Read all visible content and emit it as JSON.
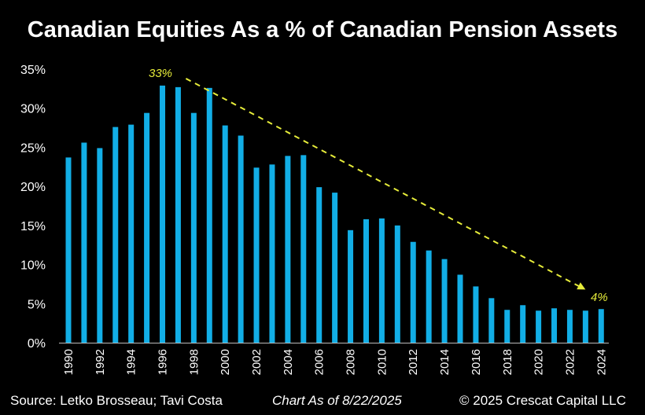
{
  "chart_data": {
    "type": "bar",
    "title": "Canadian Equities As a % of Canadian Pension Assets",
    "categories": [
      "1990",
      "1991",
      "1992",
      "1993",
      "1994",
      "1995",
      "1996",
      "1997",
      "1998",
      "1999",
      "2000",
      "2001",
      "2002",
      "2003",
      "2004",
      "2005",
      "2006",
      "2007",
      "2008",
      "2009",
      "2010",
      "2011",
      "2012",
      "2013",
      "2014",
      "2015",
      "2016",
      "2017",
      "2018",
      "2019",
      "2020",
      "2021",
      "2022",
      "2023",
      "2024"
    ],
    "values": [
      23.7,
      25.6,
      24.9,
      27.6,
      27.9,
      29.4,
      32.9,
      32.7,
      29.4,
      32.6,
      27.8,
      26.5,
      22.4,
      22.8,
      23.9,
      24.0,
      19.9,
      19.2,
      14.4,
      15.8,
      15.9,
      15.0,
      12.9,
      11.8,
      10.7,
      8.7,
      7.2,
      5.7,
      4.2,
      4.8,
      4.1,
      4.4,
      4.2,
      4.1,
      4.3
    ],
    "xtick_labels": [
      "1990",
      "1992",
      "1994",
      "1996",
      "1998",
      "2000",
      "2002",
      "2004",
      "2006",
      "2008",
      "2010",
      "2012",
      "2014",
      "2016",
      "2018",
      "2020",
      "2022",
      "2024"
    ],
    "ytick_labels": [
      "0%",
      "5%",
      "10%",
      "15%",
      "20%",
      "25%",
      "30%",
      "35%"
    ],
    "ylim": [
      0,
      35
    ],
    "grid": false,
    "bar_color": "#12aee6",
    "annotations": [
      {
        "text": "33%",
        "color": "#e6ec3a"
      },
      {
        "text": "4%",
        "color": "#e6ec3a"
      }
    ],
    "trend_arrow": {
      "from": [
        1997.5,
        33.8
      ],
      "to": [
        2023,
        6.8
      ],
      "color": "#e6ec3a",
      "style": "dashed"
    }
  },
  "footer": {
    "source": "Source: Letko Brosseau; Tavi Costa",
    "date": "Chart As of 8/22/2025",
    "copyright": "© 2025 Crescat Capital LLC"
  }
}
